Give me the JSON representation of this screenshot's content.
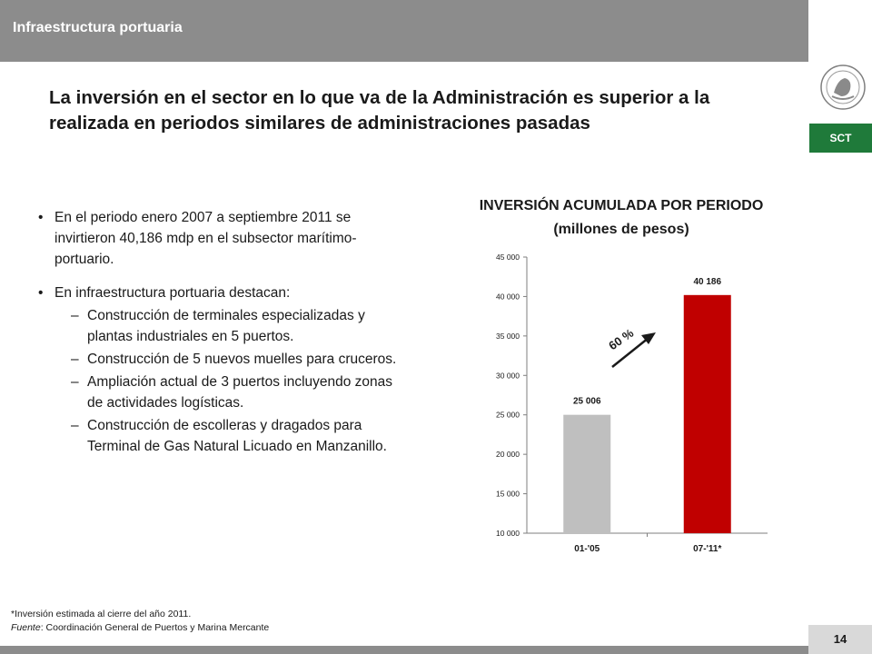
{
  "header": {
    "section_title": "Infraestructura portuaria"
  },
  "branding": {
    "agency": "SCT",
    "seal_text": "ESTADOS UNIDOS MEXICANOS",
    "accent": "#1f7a3a"
  },
  "headline": "La inversión en el sector en lo que va de la Administración es superior a la realizada en periodos similares de administraciones pasadas",
  "bullets": [
    {
      "text": "En el periodo enero 2007 a septiembre 2011 se invirtieron 40,186 mdp en el subsector marítimo-portuario.",
      "subitems": []
    },
    {
      "text": "En infraestructura portuaria destacan:",
      "subitems": [
        "Construcción de terminales especializadas y plantas industriales en 5 puertos.",
        "Construcción de 5 nuevos muelles para cruceros.",
        "Ampliación actual de 3 puertos incluyendo zonas de actividades logísticas.",
        "Construcción de escolleras y dragados para Terminal de Gas Natural Licuado en Manzanillo."
      ]
    }
  ],
  "chart_data": {
    "type": "bar",
    "title": "INVERSIÓN ACUMULADA POR PERIODO",
    "subtitle": "(millones de pesos)",
    "categories": [
      "01-'05",
      "07-'11*"
    ],
    "values": [
      25006,
      40186
    ],
    "data_labels": [
      "25 006",
      "40 186"
    ],
    "bar_colors": [
      "#bfbfbf",
      "#c00000"
    ],
    "ylim": [
      10000,
      45000
    ],
    "yticks": [
      10000,
      15000,
      20000,
      25000,
      30000,
      35000,
      40000,
      45000
    ],
    "ytick_labels": [
      "10 000",
      "15 000",
      "20 000",
      "25 000",
      "30 000",
      "35 000",
      "40 000",
      "45 000"
    ],
    "annotation": "60 %",
    "grid": false
  },
  "footnote": {
    "note": "*Inversión estimada al cierre del año 2011.",
    "source_label": "Fuente",
    "source_text": ": Coordinación General de Puertos y Marina Mercante"
  },
  "page_number": "14"
}
